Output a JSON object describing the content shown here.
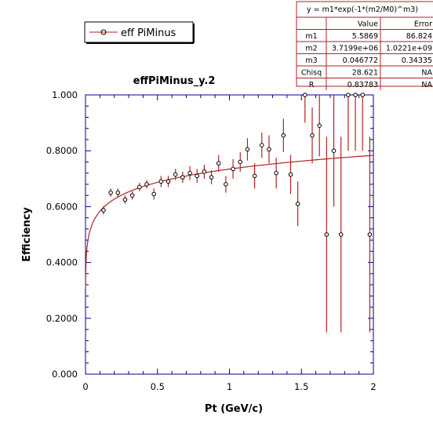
{
  "chart_data": {
    "type": "scatter",
    "title": "effPiMinus_y.2",
    "xlabel": "Pt (GeV/c)",
    "ylabel": "Efficiency",
    "xlim": [
      0,
      2
    ],
    "ylim": [
      0,
      1
    ],
    "x_ticks": [
      "0",
      "0.5",
      "1",
      "1.5",
      "2"
    ],
    "y_ticks": [
      "0.000",
      "0.2000",
      "0.4000",
      "0.6000",
      "0.8000",
      "1.000"
    ],
    "legend": {
      "label": "eff PiMinus",
      "placement": "top-left"
    },
    "series": [
      {
        "name": "eff PiMinus",
        "color": "#b22222",
        "x": [
          0.125,
          0.175,
          0.225,
          0.275,
          0.325,
          0.375,
          0.425,
          0.475,
          0.525,
          0.575,
          0.625,
          0.675,
          0.725,
          0.775,
          0.825,
          0.875,
          0.925,
          0.975,
          1.025,
          1.075,
          1.125,
          1.175,
          1.225,
          1.275,
          1.325,
          1.375,
          1.425,
          1.475,
          1.525,
          1.575,
          1.625,
          1.675,
          1.725,
          1.775,
          1.825,
          1.875,
          1.925,
          1.975
        ],
        "y": [
          0.587,
          0.65,
          0.65,
          0.625,
          0.64,
          0.67,
          0.68,
          0.645,
          0.69,
          0.69,
          0.715,
          0.705,
          0.72,
          0.71,
          0.725,
          0.705,
          0.755,
          0.68,
          0.735,
          0.76,
          0.805,
          0.71,
          0.82,
          0.805,
          0.72,
          0.855,
          0.715,
          0.61,
          1.0,
          0.855,
          0.89,
          0.5,
          0.8,
          0.5,
          1.0,
          1.0,
          1.0,
          0.5
        ],
        "err": [
          0.015,
          0.015,
          0.015,
          0.015,
          0.015,
          0.015,
          0.015,
          0.02,
          0.02,
          0.02,
          0.02,
          0.02,
          0.025,
          0.025,
          0.025,
          0.025,
          0.03,
          0.03,
          0.035,
          0.035,
          0.04,
          0.045,
          0.045,
          0.05,
          0.055,
          0.06,
          0.07,
          0.08,
          0.1,
          0.1,
          0.11,
          0.35,
          0.2,
          0.35,
          0.2,
          0.2,
          0.2,
          0.35
        ]
      }
    ],
    "fit": {
      "formula": "y = m1*exp(-1*(m2/M0)^m3)",
      "color": "#b22222",
      "params": {
        "m1": 5.5869,
        "m2": 3719900,
        "m3": 0.046772
      }
    },
    "fit_table": {
      "header": "y =  m1*exp(-1*(m2/M0)^m3)",
      "columns": [
        "",
        "Value",
        "Error"
      ],
      "rows": [
        [
          "m1",
          "5.5869",
          "86.824"
        ],
        [
          "m2",
          "3.7199e+06",
          "1.0221e+09"
        ],
        [
          "m3",
          "0.046772",
          "0.34335"
        ],
        [
          "Chisq",
          "28.621",
          "NA"
        ],
        [
          "R",
          "0.83783",
          "NA"
        ]
      ]
    }
  }
}
